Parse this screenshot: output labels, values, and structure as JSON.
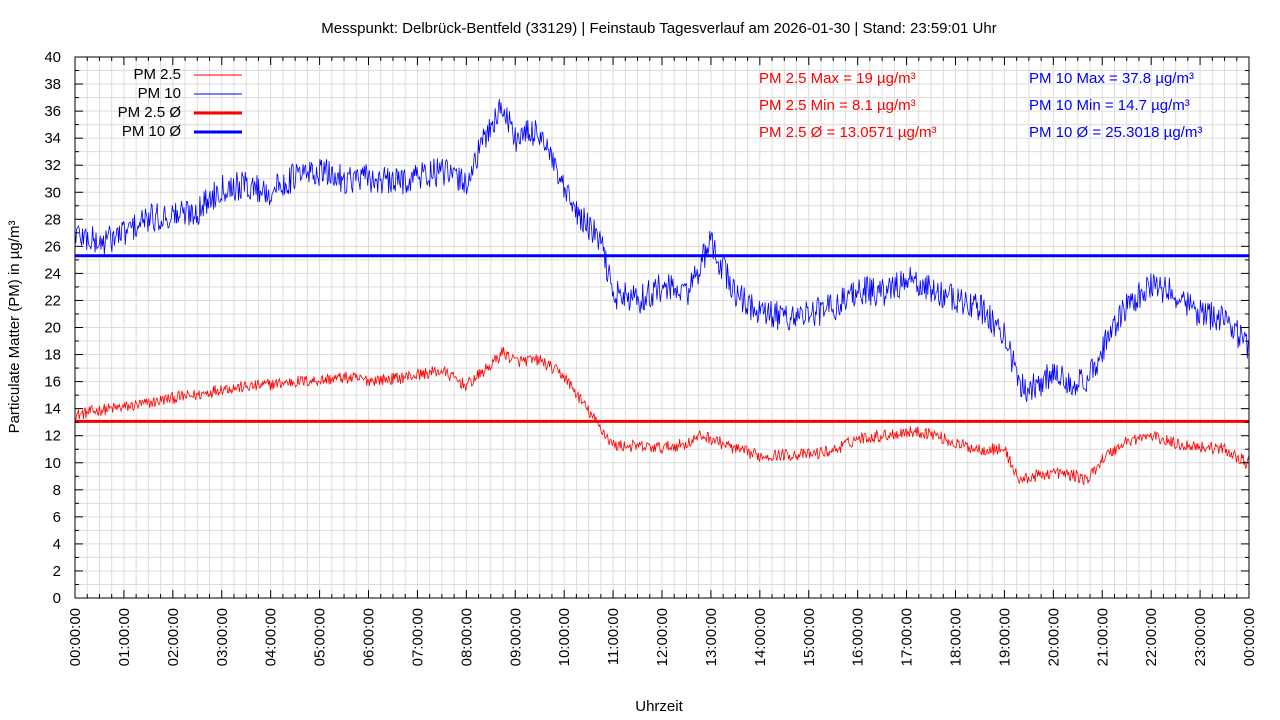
{
  "chart_data": {
    "type": "line",
    "title": "Messpunkt: Delbrück-Bentfeld (33129) | Feinstaub Tagesverlauf am 2026-01-30 | Stand: 23:59:01 Uhr",
    "xlabel": "Uhrzeit",
    "ylabel": "Particulate Matter (PM) in µg/m³",
    "ylim": [
      0,
      40
    ],
    "xlim_hours": [
      0,
      24
    ],
    "grid": true,
    "legend_position": "top-left",
    "y_ticks": [
      "0",
      "2",
      "4",
      "6",
      "8",
      "10",
      "12",
      "14",
      "16",
      "18",
      "20",
      "22",
      "24",
      "26",
      "28",
      "30",
      "32",
      "34",
      "36",
      "38",
      "40"
    ],
    "x_ticks": [
      "00:00:00",
      "01:00:00",
      "02:00:00",
      "03:00:00",
      "04:00:00",
      "05:00:00",
      "06:00:00",
      "07:00:00",
      "08:00:00",
      "09:00:00",
      "10:00:00",
      "11:00:00",
      "12:00:00",
      "13:00:00",
      "14:00:00",
      "15:00:00",
      "16:00:00",
      "17:00:00",
      "18:00:00",
      "19:00:00",
      "20:00:00",
      "21:00:00",
      "22:00:00",
      "23:00:00",
      "00:00:00"
    ],
    "series": [
      {
        "name": "PM 2.5",
        "color": "#ff0000",
        "x_hours": [
          0,
          0.5,
          1,
          1.5,
          2,
          2.5,
          3,
          3.5,
          4,
          4.5,
          5,
          5.5,
          6,
          6.5,
          7,
          7.5,
          8,
          8.5,
          8.75,
          9,
          9.5,
          10,
          10.5,
          11,
          11.5,
          12,
          12.5,
          12.8,
          13,
          13.5,
          14,
          14.5,
          15,
          15.5,
          16,
          16.5,
          17,
          17.5,
          18,
          18.5,
          19,
          19.3,
          19.5,
          20,
          20.5,
          20.7,
          21,
          21.5,
          22,
          22.5,
          23,
          23.5,
          24
        ],
        "values": [
          13.5,
          13.9,
          14.1,
          14.4,
          14.8,
          15.0,
          15.5,
          15.6,
          15.8,
          16.0,
          16.1,
          16.3,
          16.1,
          16.2,
          16.5,
          16.8,
          15.7,
          17.2,
          18.2,
          17.5,
          17.6,
          16.4,
          13.8,
          11.3,
          11.2,
          11.1,
          11.4,
          12.0,
          11.8,
          11.0,
          10.5,
          10.6,
          10.6,
          10.9,
          11.8,
          12.0,
          12.3,
          12.2,
          11.4,
          11.0,
          11.0,
          8.7,
          8.9,
          9.3,
          9.0,
          8.7,
          10.3,
          11.6,
          12.0,
          11.4,
          11.2,
          11.0,
          9.9
        ]
      },
      {
        "name": "PM 10",
        "color": "#0000ff",
        "x_hours": [
          0,
          0.5,
          1,
          1.5,
          2,
          2.5,
          3,
          3.5,
          4,
          4.5,
          5,
          5.5,
          6,
          6.5,
          7,
          7.5,
          8,
          8.5,
          8.75,
          9,
          9.5,
          10,
          10.25,
          10.75,
          11,
          11.5,
          12,
          12.5,
          13,
          13.5,
          14,
          14.5,
          15,
          15.5,
          16,
          16.5,
          17,
          17.5,
          18,
          18.5,
          19,
          19.3,
          19.5,
          20,
          20.5,
          20.7,
          21,
          21.5,
          22,
          22.5,
          23,
          23.5,
          24
        ],
        "values": [
          27.0,
          26.2,
          27.0,
          28.0,
          28.3,
          28.6,
          30.4,
          30.5,
          30.0,
          31.2,
          31.5,
          31.0,
          31.0,
          30.7,
          31.2,
          31.5,
          30.7,
          35.0,
          36.3,
          34.0,
          34.5,
          30.0,
          28.5,
          26.3,
          22.5,
          22.0,
          23.0,
          22.5,
          26.2,
          22.5,
          21.0,
          20.8,
          21.0,
          21.5,
          22.8,
          22.5,
          23.5,
          22.8,
          22.0,
          21.5,
          19.5,
          15.8,
          15.5,
          16.5,
          16.0,
          15.8,
          18.5,
          21.5,
          23.0,
          22.5,
          21.0,
          20.8,
          18.5
        ]
      },
      {
        "name": "PM 2.5 Ø",
        "color": "#ff0000",
        "constant": 13.0571
      },
      {
        "name": "PM 10 Ø",
        "color": "#0000ff",
        "constant": 25.3018
      }
    ],
    "annotations": {
      "pm25": [
        "PM 2.5 Max = 19 µg/m³",
        "PM 2.5 Min = 8.1 µg/m³",
        "PM 2.5 Ø = 13.0571 µg/m³"
      ],
      "pm10": [
        "PM 10 Max = 37.8 µg/m³",
        "PM 10 Min = 14.7 µg/m³",
        "PM 10 Ø = 25.3018 µg/m³"
      ]
    }
  }
}
